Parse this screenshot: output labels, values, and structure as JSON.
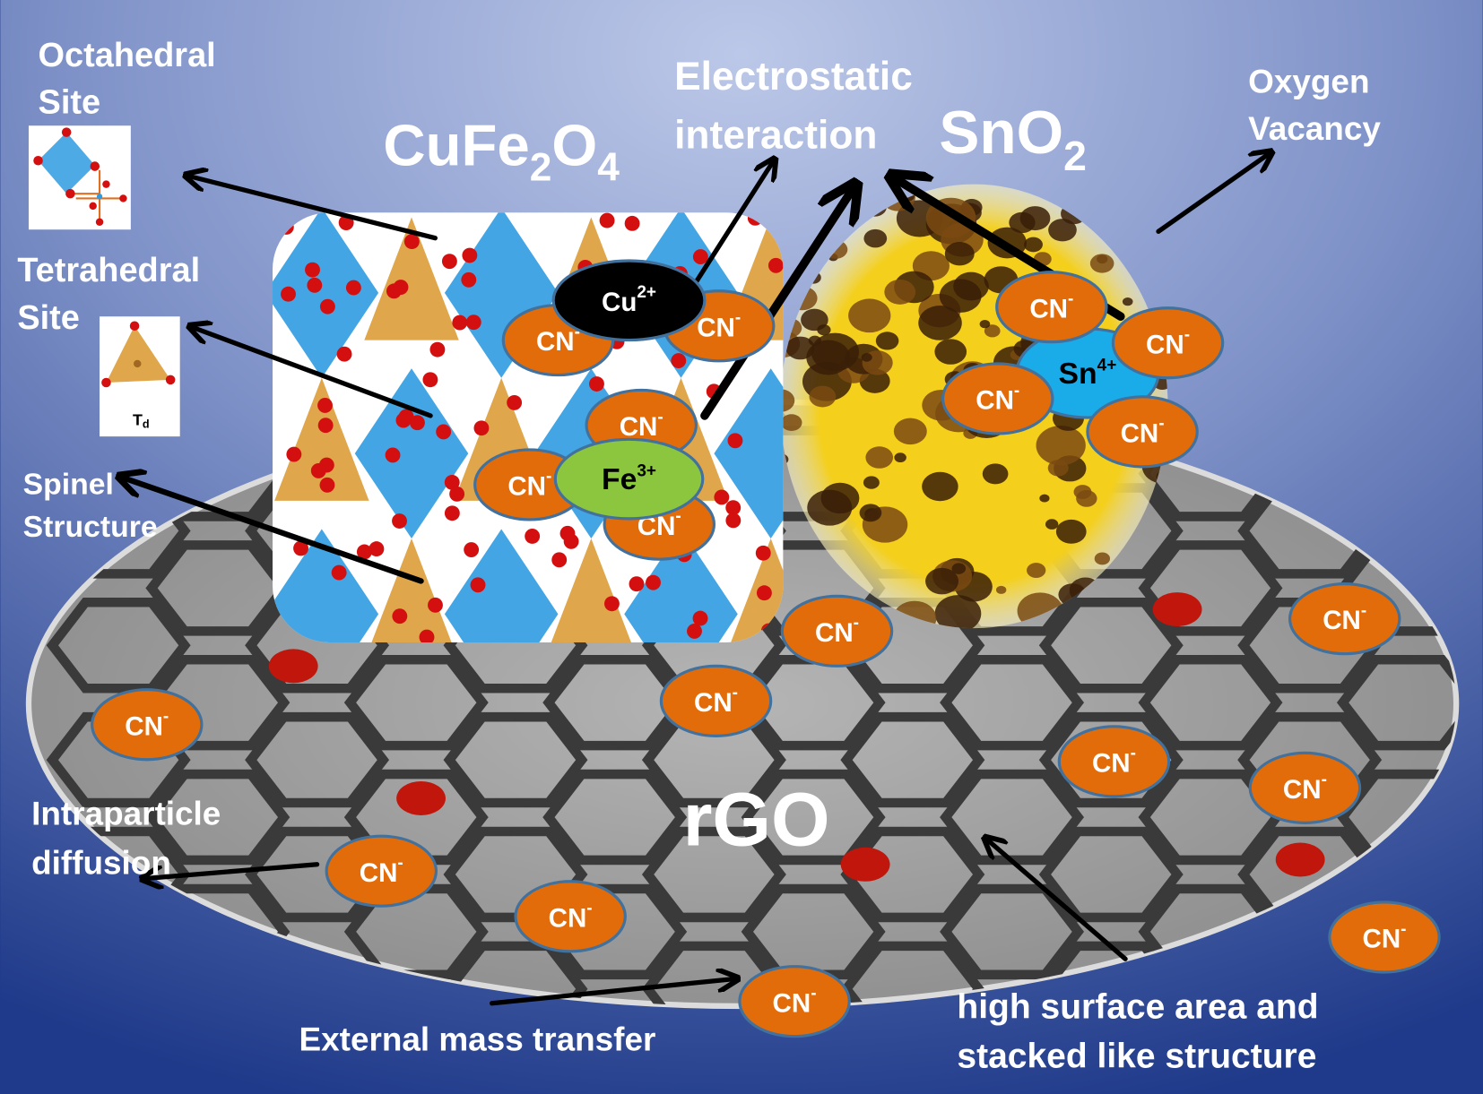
{
  "labels": {
    "octahedral_site": [
      "Octahedral",
      "Site"
    ],
    "tetrahedral_site": [
      "Tetrahedral",
      "Site"
    ],
    "spinel_structure": [
      "Spinel",
      "Structure"
    ],
    "electrostatic_interaction": [
      "Electrostatic",
      "interaction"
    ],
    "oxygen_vacancy": [
      "Oxygen",
      "Vacancy"
    ],
    "intraparticle_diffusion": [
      "Intraparticle",
      "diffusion"
    ],
    "external_mass_transfer": "External mass transfer",
    "high_surface_area": [
      "high surface area and",
      "stacked  like structure"
    ],
    "rgo": "rGO"
  },
  "formulas": {
    "cufe2o4": {
      "a": "CuFe",
      "s1": "2",
      "b": "O",
      "s2": "4"
    },
    "sno2": {
      "a": "SnO",
      "s1": "2"
    }
  },
  "ions": {
    "cn": "CN",
    "cn_charge": "-",
    "cu": "Cu",
    "cu_charge": "2+",
    "fe": "Fe",
    "fe_charge": "3+",
    "sn": "Sn",
    "sn_charge": "4+"
  },
  "inset": {
    "td": "T",
    "td_sub": "d"
  },
  "colors": {
    "background_light": "#b9c5e6",
    "background_dark": "#1f3a8a",
    "cn_ion": "#e36c0a",
    "ion_outline": "#41719c",
    "cu_ion": "#000000",
    "fe_ion": "#8cc63f",
    "sn_ion": "#1aace8",
    "sno2_particle": "#f4cf1c",
    "octahedra": "#2f9be0",
    "tetrahedra": "#d9962b",
    "oxygen_atom": "#d40f0f",
    "rgo_sheet": "#9a9a9a"
  }
}
